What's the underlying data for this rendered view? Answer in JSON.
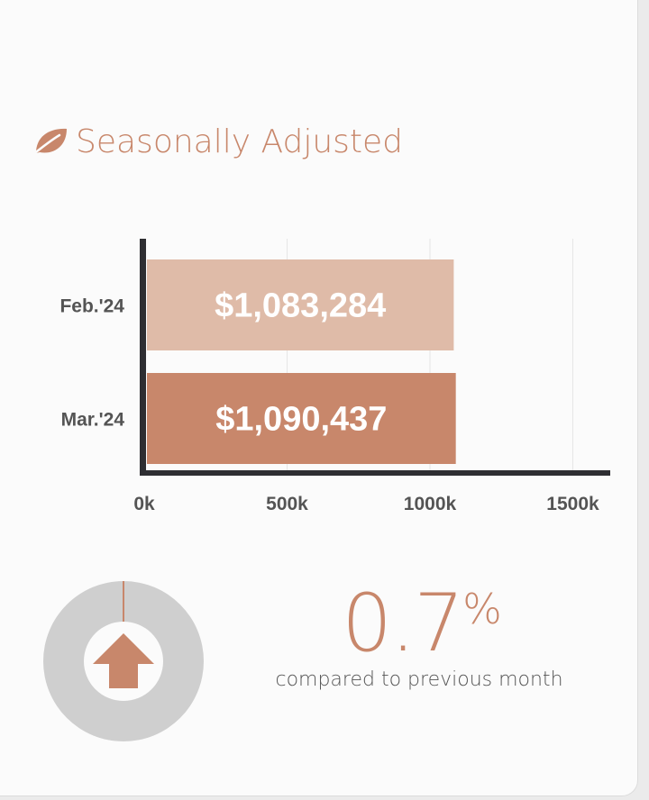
{
  "header": {
    "title": "Seasonally Adjusted",
    "icon": "leaf-icon"
  },
  "chart_data": {
    "type": "bar",
    "orientation": "horizontal",
    "categories": [
      "Feb.'24",
      "Mar.'24"
    ],
    "values": [
      1083284,
      1090437
    ],
    "data_labels": [
      "$1,083,284",
      "$1,090,437"
    ],
    "bar_colors": [
      "#dfbba8",
      "#c8876b"
    ],
    "xlim": [
      0,
      1600000
    ],
    "xticks": [
      0,
      500000,
      1000000,
      1500000
    ],
    "xtick_labels": [
      "0k",
      "500k",
      "1000k",
      "1500k"
    ],
    "grid": "vertical",
    "title": "",
    "xlabel": "",
    "ylabel": ""
  },
  "change": {
    "value": "0.7",
    "unit": "%",
    "caption": "compared to previous month",
    "direction_icon": "up-arrow-icon",
    "accent": "#c8876b"
  }
}
